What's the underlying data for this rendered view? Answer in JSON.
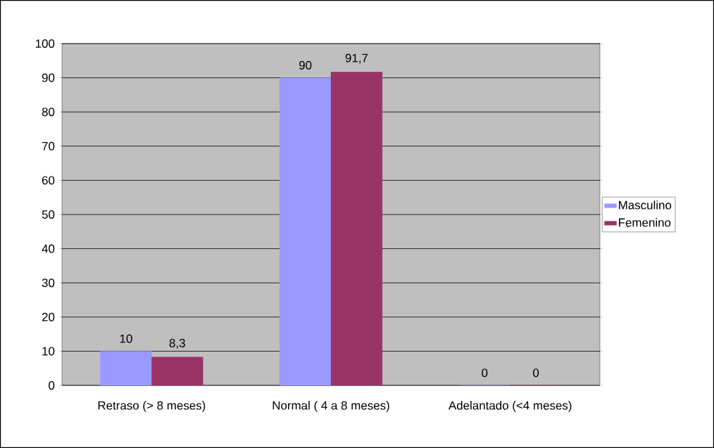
{
  "chart_data": {
    "type": "bar",
    "categories": [
      "Retraso (> 8 meses)",
      "Normal ( 4 a 8 meses)",
      "Adelantado (<4 meses)"
    ],
    "series": [
      {
        "name": "Masculino",
        "color": "#9999ff",
        "values": [
          10,
          90,
          0
        ],
        "value_labels": [
          "10",
          "90",
          "0"
        ]
      },
      {
        "name": "Femenino",
        "color": "#993366",
        "values": [
          8.3,
          91.7,
          0
        ],
        "value_labels": [
          "8,3",
          "91,7",
          "0"
        ]
      }
    ],
    "ylim": [
      0,
      100
    ],
    "yticks": [
      0,
      10,
      20,
      30,
      40,
      50,
      60,
      70,
      80,
      90,
      100
    ],
    "grid": "y",
    "legend": "right"
  }
}
